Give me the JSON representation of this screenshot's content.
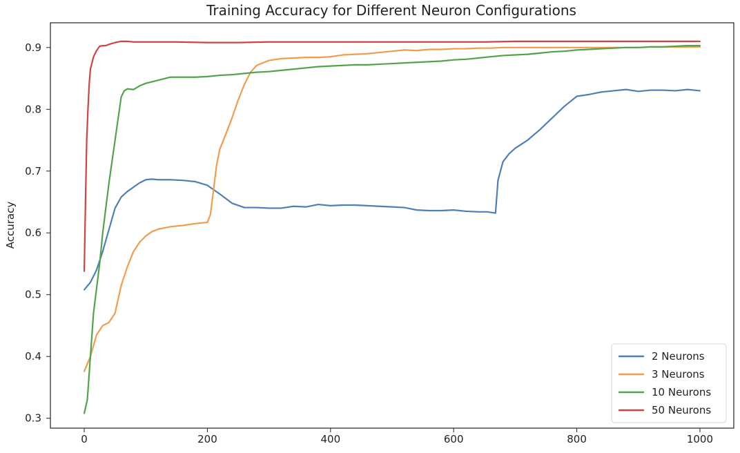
{
  "chart_data": {
    "type": "line",
    "title": "Training Accuracy for Different Neuron Configurations",
    "xlabel": "",
    "ylabel": "Accuracy",
    "xlim": [
      -55,
      1055
    ],
    "ylim": [
      0.284,
      0.94
    ],
    "xticks": [
      0,
      200,
      400,
      600,
      800,
      1000
    ],
    "yticks": [
      0.3,
      0.4,
      0.5,
      0.6,
      0.7,
      0.8,
      0.9
    ],
    "grid": false,
    "legend_position": "lower right",
    "series": [
      {
        "name": "2 Neurons",
        "color": "#4c7fb8",
        "x": [
          0,
          10,
          20,
          30,
          40,
          50,
          60,
          70,
          80,
          90,
          100,
          110,
          120,
          140,
          160,
          180,
          200,
          210,
          220,
          240,
          260,
          280,
          300,
          320,
          340,
          360,
          380,
          400,
          420,
          440,
          460,
          480,
          500,
          520,
          540,
          560,
          580,
          600,
          620,
          640,
          655,
          668,
          672,
          680,
          690,
          700,
          720,
          740,
          760,
          780,
          800,
          820,
          840,
          860,
          880,
          900,
          920,
          940,
          960,
          980,
          1000
        ],
        "y": [
          0.508,
          0.52,
          0.54,
          0.57,
          0.605,
          0.64,
          0.658,
          0.667,
          0.674,
          0.681,
          0.686,
          0.687,
          0.686,
          0.686,
          0.685,
          0.683,
          0.677,
          0.67,
          0.663,
          0.648,
          0.641,
          0.641,
          0.64,
          0.64,
          0.643,
          0.642,
          0.646,
          0.644,
          0.645,
          0.645,
          0.644,
          0.643,
          0.642,
          0.641,
          0.637,
          0.636,
          0.636,
          0.637,
          0.635,
          0.634,
          0.634,
          0.632,
          0.685,
          0.715,
          0.728,
          0.737,
          0.75,
          0.767,
          0.786,
          0.805,
          0.821,
          0.824,
          0.828,
          0.83,
          0.832,
          0.829,
          0.831,
          0.831,
          0.83,
          0.832,
          0.83
        ]
      },
      {
        "name": "3 Neurons",
        "color": "#f39b4d",
        "x": [
          0,
          10,
          20,
          30,
          40,
          50,
          60,
          70,
          80,
          90,
          100,
          110,
          120,
          140,
          160,
          180,
          200,
          205,
          210,
          215,
          220,
          230,
          240,
          250,
          260,
          270,
          280,
          290,
          300,
          320,
          340,
          360,
          380,
          400,
          420,
          440,
          460,
          480,
          500,
          520,
          540,
          560,
          580,
          600,
          620,
          640,
          660,
          680,
          700,
          720,
          740,
          760,
          780,
          800,
          820,
          840,
          860,
          880,
          900,
          920,
          940,
          960,
          980,
          1000
        ],
        "y": [
          0.376,
          0.4,
          0.435,
          0.45,
          0.455,
          0.47,
          0.515,
          0.545,
          0.57,
          0.585,
          0.595,
          0.602,
          0.606,
          0.61,
          0.612,
          0.615,
          0.617,
          0.63,
          0.67,
          0.71,
          0.735,
          0.76,
          0.786,
          0.815,
          0.84,
          0.86,
          0.871,
          0.875,
          0.879,
          0.882,
          0.883,
          0.884,
          0.884,
          0.885,
          0.888,
          0.889,
          0.89,
          0.892,
          0.894,
          0.896,
          0.895,
          0.897,
          0.897,
          0.898,
          0.898,
          0.899,
          0.899,
          0.9,
          0.9,
          0.9,
          0.9,
          0.9,
          0.9,
          0.9,
          0.9,
          0.9,
          0.9,
          0.9,
          0.9,
          0.901,
          0.901,
          0.901,
          0.901,
          0.901
        ]
      },
      {
        "name": "10 Neurons",
        "color": "#4fa34a",
        "x": [
          0,
          5,
          10,
          15,
          20,
          25,
          30,
          40,
          50,
          60,
          65,
          70,
          80,
          90,
          100,
          120,
          140,
          160,
          180,
          200,
          220,
          240,
          260,
          280,
          300,
          320,
          340,
          360,
          380,
          400,
          420,
          440,
          460,
          480,
          500,
          520,
          540,
          560,
          580,
          600,
          620,
          640,
          660,
          680,
          700,
          720,
          740,
          760,
          780,
          800,
          820,
          840,
          860,
          880,
          900,
          920,
          940,
          960,
          980,
          1000
        ],
        "y": [
          0.308,
          0.33,
          0.4,
          0.47,
          0.51,
          0.55,
          0.6,
          0.68,
          0.75,
          0.82,
          0.83,
          0.833,
          0.832,
          0.838,
          0.842,
          0.847,
          0.852,
          0.852,
          0.852,
          0.853,
          0.855,
          0.856,
          0.858,
          0.86,
          0.861,
          0.863,
          0.865,
          0.867,
          0.869,
          0.87,
          0.871,
          0.872,
          0.872,
          0.873,
          0.874,
          0.875,
          0.876,
          0.877,
          0.878,
          0.88,
          0.881,
          0.883,
          0.885,
          0.887,
          0.888,
          0.889,
          0.891,
          0.893,
          0.894,
          0.896,
          0.897,
          0.898,
          0.899,
          0.9,
          0.9,
          0.901,
          0.901,
          0.902,
          0.903,
          0.903
        ]
      },
      {
        "name": "50 Neurons",
        "color": "#cf4342",
        "x": [
          0,
          2,
          4,
          6,
          8,
          10,
          15,
          20,
          25,
          30,
          35,
          40,
          50,
          60,
          70,
          80,
          100,
          120,
          150,
          200,
          250,
          300,
          350,
          400,
          450,
          500,
          550,
          600,
          650,
          700,
          750,
          800,
          850,
          900,
          950,
          1000
        ],
        "y": [
          0.538,
          0.65,
          0.75,
          0.8,
          0.84,
          0.865,
          0.885,
          0.895,
          0.902,
          0.903,
          0.903,
          0.905,
          0.908,
          0.91,
          0.91,
          0.909,
          0.909,
          0.909,
          0.909,
          0.908,
          0.908,
          0.909,
          0.909,
          0.909,
          0.909,
          0.909,
          0.909,
          0.909,
          0.909,
          0.91,
          0.91,
          0.91,
          0.91,
          0.91,
          0.91,
          0.91
        ]
      }
    ]
  }
}
